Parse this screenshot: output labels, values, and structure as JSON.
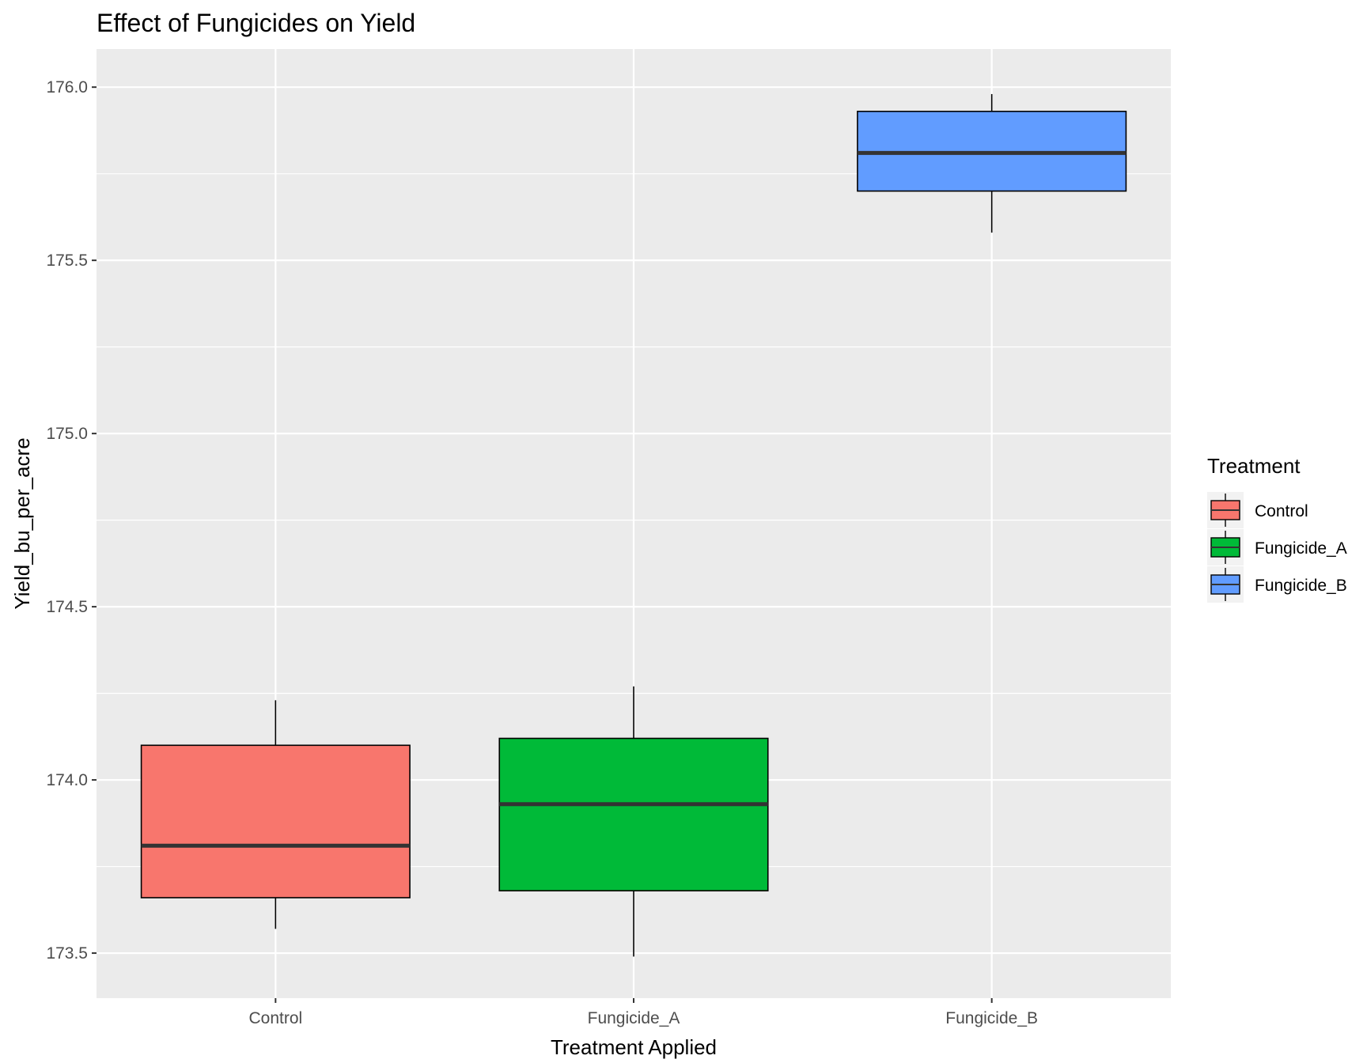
{
  "chart_data": {
    "type": "boxplot",
    "title": "Effect of Fungicides on Yield",
    "xlabel": "Treatment Applied",
    "ylabel": "Yield_bu_per_acre",
    "ylim": [
      173.37,
      176.11
    ],
    "yticks": [
      "173.5",
      "174.0",
      "174.5",
      "175.0",
      "175.5",
      "176.0"
    ],
    "grid": true,
    "legend": {
      "title": "Treatment",
      "position": "right"
    },
    "categories": [
      "Control",
      "Fungicide_A",
      "Fungicide_B"
    ],
    "series": [
      {
        "name": "Control",
        "color": "#F8766D",
        "min": 173.57,
        "q1": 173.66,
        "median": 173.81,
        "q3": 174.1,
        "max": 174.23
      },
      {
        "name": "Fungicide_A",
        "color": "#00BA38",
        "min": 173.49,
        "q1": 173.68,
        "median": 173.93,
        "q3": 174.12,
        "max": 174.27
      },
      {
        "name": "Fungicide_B",
        "color": "#619CFF",
        "min": 175.58,
        "q1": 175.7,
        "median": 175.81,
        "q3": 175.93,
        "max": 175.98
      }
    ]
  }
}
